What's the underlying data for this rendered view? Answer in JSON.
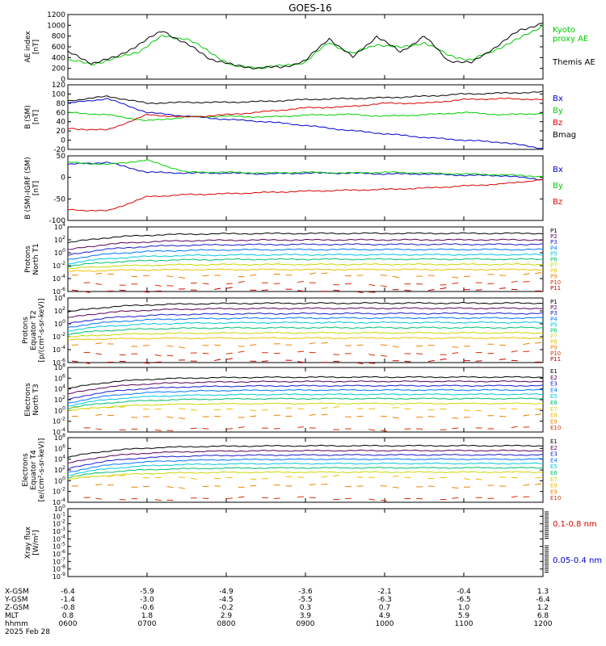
{
  "title": "GOES-16",
  "colors": {
    "black": "#000000",
    "red": "#dd0000",
    "green": "#00cc00",
    "blue": "#0000cc",
    "chan": [
      "#000000",
      "#5a005a",
      "#1a1ad0",
      "#0077ff",
      "#00c8e0",
      "#00c070",
      "#c8d800",
      "#f0c000",
      "#f08000",
      "#d83000",
      "#c00000"
    ]
  },
  "time_axis": {
    "ticks": [
      "0600",
      "0700",
      "0800",
      "0900",
      "1000",
      "1100",
      "1200"
    ],
    "row_labels": [
      "X-GSM",
      "Y-GSM",
      "Z-GSM",
      "MLT",
      "hhmm"
    ],
    "xgsm": [
      "-6.4",
      "-5.9",
      "-4.9",
      "-3.6",
      "-2.1",
      "-0.4",
      "1.3"
    ],
    "ygsm": [
      "-1.4",
      "-3.0",
      "-4.5",
      "-5.5",
      "-6.3",
      "-6.5",
      "-6.4"
    ],
    "zgsm": [
      "-0.8",
      "-0.6",
      "-0.2",
      "0.3",
      "0.7",
      "1.0",
      "1.2"
    ],
    "mlt": [
      "0.8",
      "1.8",
      "2.9",
      "3.9",
      "4.9",
      "5.9",
      "6.8"
    ],
    "date": "2025 Feb 28"
  },
  "chart_data": [
    {
      "type": "line",
      "panel": "ae",
      "ylabel_lines": [
        "AE index",
        "[nT]"
      ],
      "ylim": [
        0,
        1200
      ],
      "yticks": [
        "0",
        "200",
        "400",
        "600",
        "800",
        "1000",
        "1200"
      ],
      "x": [
        0,
        0.3,
        0.6,
        0.9,
        1.2,
        1.5,
        1.8,
        2.1,
        2.4,
        2.7,
        3.0,
        3.3,
        3.6,
        3.9,
        4.2,
        4.5,
        4.8,
        5.1,
        5.4,
        5.7,
        6.0
      ],
      "series": [
        {
          "name": "Kyoto proxy AE",
          "legend_lines": [
            "Kyoto",
            "proxy AE"
          ],
          "color": "green",
          "values": [
            350,
            280,
            380,
            520,
            800,
            750,
            500,
            230,
            220,
            240,
            320,
            680,
            470,
            650,
            580,
            680,
            450,
            350,
            550,
            750,
            1000
          ]
        },
        {
          "name": "Themis AE",
          "legend_lines": [
            "Themis AE"
          ],
          "color": "black",
          "values": [
            500,
            300,
            400,
            650,
            900,
            650,
            380,
            250,
            210,
            220,
            340,
            760,
            400,
            800,
            500,
            800,
            350,
            300,
            600,
            900,
            1050
          ]
        }
      ]
    },
    {
      "type": "line",
      "panel": "bsm",
      "ylabel_lines": [
        "B (SM)",
        "[nT]"
      ],
      "ylim": [
        -20,
        120
      ],
      "yticks": [
        "-20",
        "0",
        "20",
        "40",
        "60",
        "80",
        "100",
        "120"
      ],
      "x": [
        0,
        0.5,
        1.0,
        1.5,
        2.0,
        2.5,
        3.0,
        3.5,
        4.0,
        4.5,
        5.0,
        5.5,
        6.0
      ],
      "series": [
        {
          "name": "Bx",
          "color": "blue",
          "values": [
            80,
            90,
            60,
            52,
            45,
            40,
            32,
            22,
            14,
            6,
            0,
            -5,
            -18
          ]
        },
        {
          "name": "By",
          "color": "green",
          "values": [
            60,
            55,
            42,
            50,
            52,
            50,
            54,
            56,
            52,
            55,
            60,
            55,
            58
          ]
        },
        {
          "name": "Bz",
          "color": "red",
          "values": [
            25,
            22,
            55,
            50,
            55,
            62,
            70,
            72,
            80,
            80,
            88,
            90,
            88
          ]
        },
        {
          "name": "Bmag",
          "color": "black",
          "values": [
            85,
            95,
            80,
            82,
            82,
            84,
            88,
            90,
            92,
            95,
            100,
            102,
            104
          ]
        }
      ]
    },
    {
      "type": "line",
      "panel": "bdiff",
      "ylabel_lines": [
        "B (SM)-IGRF (SM)",
        "[nT]"
      ],
      "ylim": [
        -100,
        50
      ],
      "yticks": [
        "-100",
        "-50",
        "0",
        "50"
      ],
      "x": [
        0,
        0.5,
        1.0,
        1.5,
        2.0,
        2.5,
        3.0,
        3.5,
        4.0,
        4.5,
        5.0,
        5.5,
        6.0
      ],
      "series": [
        {
          "name": "Bx",
          "color": "blue",
          "values": [
            30,
            35,
            12,
            10,
            10,
            8,
            10,
            10,
            8,
            8,
            5,
            4,
            -5
          ]
        },
        {
          "name": "By",
          "color": "green",
          "values": [
            35,
            30,
            40,
            12,
            12,
            10,
            12,
            10,
            12,
            10,
            8,
            6,
            2
          ]
        },
        {
          "name": "Bz",
          "color": "red",
          "values": [
            -75,
            -78,
            -45,
            -40,
            -38,
            -35,
            -32,
            -30,
            -28,
            -25,
            -20,
            -15,
            -5
          ]
        }
      ]
    },
    {
      "type": "line",
      "scale": "log",
      "panel": "p1",
      "ylabel_lines": [
        "Protons",
        "North T1"
      ],
      "ylim_exp": [
        -6,
        4
      ],
      "ytick_exps": [
        -6,
        -4,
        -2,
        0,
        2,
        4
      ],
      "labels": [
        "P1",
        "P2",
        "P3",
        "P4",
        "P5",
        "P6",
        "P7",
        "P8",
        "P9",
        "P10",
        "P11"
      ],
      "levels_exp": [
        3,
        2,
        1.3,
        0.5,
        -0.3,
        -1,
        -1.8,
        -2.6,
        -3.5,
        -4.8,
        -5.8
      ],
      "start_drop": [
        1.5,
        1.6,
        1.7,
        1.6,
        1.4,
        1.1,
        0.7,
        0.3,
        0,
        0,
        0
      ]
    },
    {
      "type": "line",
      "scale": "log",
      "panel": "p2",
      "ylabel_lines": [
        "Protons",
        "Equator T2",
        "[p/(cm²-s-sr-keV)]"
      ],
      "ylim_exp": [
        -6,
        4
      ],
      "ytick_exps": [
        -6,
        -4,
        -2,
        0,
        2,
        4
      ],
      "labels": [
        "P1",
        "P2",
        "P3",
        "P4",
        "P5",
        "P6",
        "P7",
        "P8",
        "P9",
        "P10",
        "P11"
      ],
      "levels_exp": [
        3.2,
        2.4,
        1.6,
        0.9,
        0.2,
        -0.6,
        -1.4,
        -2.2,
        -3.3,
        -4.6,
        -5.8
      ],
      "start_drop": [
        1.4,
        1.5,
        1.6,
        1.5,
        1.3,
        1.0,
        0.7,
        0.3,
        0,
        0,
        0
      ]
    },
    {
      "type": "line",
      "scale": "log",
      "panel": "e1",
      "ylabel_lines": [
        "Electrons",
        "North T3"
      ],
      "ylim_exp": [
        -4,
        8
      ],
      "ytick_exps": [
        -4,
        -2,
        0,
        2,
        4,
        6,
        8
      ],
      "labels": [
        "E1",
        "E2",
        "E3",
        "E4",
        "E5",
        "E6",
        "E7",
        "E8",
        "E9",
        "E10"
      ],
      "levels_exp": [
        6.2,
        5.4,
        4.6,
        3.8,
        3.0,
        2.2,
        1.3,
        0.3,
        -1.1,
        -3.4
      ],
      "start_drop": [
        2.2,
        2.4,
        2.6,
        2.5,
        2.2,
        1.8,
        1.4,
        0.8,
        0,
        0
      ]
    },
    {
      "type": "line",
      "scale": "log",
      "panel": "e2",
      "ylabel_lines": [
        "Electrons",
        "Equator T4",
        "[e/(cm²-s-sr-keV)]"
      ],
      "ylim_exp": [
        -4,
        8
      ],
      "ytick_exps": [
        -4,
        -2,
        0,
        2,
        4,
        6,
        8
      ],
      "labels": [
        "E1",
        "E2",
        "E3",
        "E4",
        "E5",
        "E6",
        "E7",
        "E8",
        "E9",
        "E10"
      ],
      "levels_exp": [
        6.5,
        5.6,
        4.8,
        4.0,
        3.2,
        2.4,
        1.6,
        0.6,
        -1.0,
        -3.3
      ],
      "start_drop": [
        2.2,
        2.4,
        2.6,
        2.5,
        2.2,
        1.8,
        1.4,
        0.8,
        0,
        0
      ]
    },
    {
      "type": "line",
      "scale": "log",
      "panel": "xray",
      "ylabel_lines": [
        "Xray flux",
        "[W/m²]"
      ],
      "ylim_exp": [
        -9,
        0
      ],
      "ytick_exps": [
        -9,
        -8,
        -7,
        -6,
        -5,
        -4,
        -3,
        -2,
        -1,
        0
      ],
      "series": [
        {
          "name": "0.1-0.8 nm",
          "color": "red",
          "values": []
        },
        {
          "name": "0.05-0.4 nm",
          "color": "blue",
          "values": []
        }
      ]
    }
  ]
}
